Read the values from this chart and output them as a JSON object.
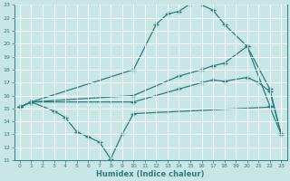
{
  "xlabel": "Humidex (Indice chaleur)",
  "xlim": [
    -0.5,
    23.5
  ],
  "ylim": [
    11,
    23
  ],
  "xticks": [
    0,
    1,
    2,
    3,
    4,
    5,
    6,
    7,
    8,
    9,
    10,
    11,
    12,
    13,
    14,
    15,
    16,
    17,
    18,
    19,
    20,
    21,
    22,
    23
  ],
  "yticks": [
    11,
    12,
    13,
    14,
    15,
    16,
    17,
    18,
    19,
    20,
    21,
    22,
    23
  ],
  "background_color": "#c8e6e6",
  "grid_color": "#ffffff",
  "line_color": "#2e7d7d",
  "lines": [
    {
      "x": [
        0,
        1,
        10,
        12,
        13,
        14,
        15,
        16,
        17,
        18,
        20,
        22
      ],
      "y": [
        15.1,
        15.5,
        18.0,
        21.5,
        22.3,
        22.5,
        23.1,
        23.0,
        22.6,
        21.5,
        19.8,
        15.2
      ]
    },
    {
      "x": [
        0,
        1,
        10,
        14,
        16,
        17,
        18,
        20,
        22,
        23
      ],
      "y": [
        15.1,
        15.5,
        16.0,
        17.5,
        18.0,
        18.3,
        18.5,
        19.8,
        16.5,
        13.0
      ]
    },
    {
      "x": [
        0,
        1,
        10,
        14,
        16,
        17,
        18,
        20,
        21,
        22,
        23
      ],
      "y": [
        15.1,
        15.5,
        15.5,
        16.5,
        17.0,
        17.2,
        17.1,
        17.4,
        17.0,
        16.3,
        13.0
      ]
    },
    {
      "x": [
        0,
        1,
        3,
        4,
        5,
        6,
        7,
        8,
        9,
        10,
        22,
        23
      ],
      "y": [
        15.1,
        15.5,
        14.8,
        14.3,
        13.2,
        12.8,
        12.4,
        11.1,
        13.0,
        14.6,
        15.1,
        13.0
      ]
    }
  ]
}
